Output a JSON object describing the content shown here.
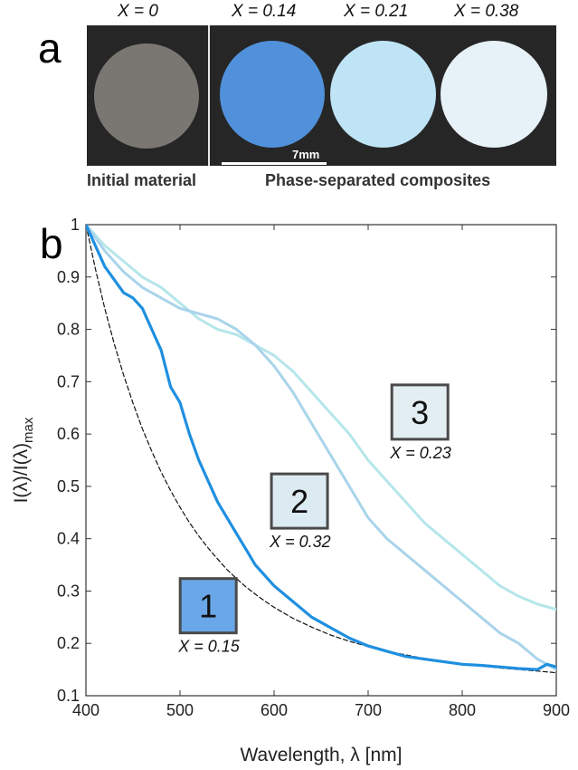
{
  "panel_a": {
    "letter": "a",
    "samples": [
      {
        "label": "X = 0",
        "color": "#7a7773"
      },
      {
        "label": "X = 0.14",
        "color": "#5191db"
      },
      {
        "label": "X = 0.21",
        "color": "#bfe4f6"
      },
      {
        "label": "X = 0.38",
        "color": "#e7f1f8"
      }
    ],
    "scale_label": "7mm",
    "caption_left": "Initial material",
    "caption_right": "Phase-separated composites"
  },
  "panel_b": {
    "letter": "b"
  },
  "chart_data": {
    "type": "line",
    "xlabel": "Wavelength, λ [nm]",
    "ylabel_main": "I(λ)/I(λ)",
    "ylabel_sub": "max",
    "xlim": [
      400,
      900
    ],
    "ylim": [
      0.1,
      1
    ],
    "xticks": [
      "400",
      "500",
      "600",
      "700",
      "800",
      "900"
    ],
    "yticks": [
      "0.1",
      "0.2",
      "0.3",
      "0.4",
      "0.5",
      "0.6",
      "0.7",
      "0.8",
      "0.9",
      "1"
    ],
    "grid": false,
    "series": [
      {
        "id": "1",
        "color": "#1f8fe0",
        "style": "solid",
        "x": [
          400,
          420,
          440,
          450,
          460,
          470,
          480,
          490,
          500,
          510,
          520,
          530,
          540,
          550,
          560,
          570,
          580,
          590,
          600,
          620,
          640,
          660,
          680,
          700,
          720,
          740,
          760,
          780,
          800,
          820,
          840,
          860,
          880,
          890,
          900
        ],
        "y": [
          1.0,
          0.92,
          0.87,
          0.86,
          0.84,
          0.8,
          0.76,
          0.69,
          0.66,
          0.6,
          0.55,
          0.51,
          0.47,
          0.44,
          0.41,
          0.38,
          0.35,
          0.33,
          0.31,
          0.28,
          0.25,
          0.23,
          0.21,
          0.195,
          0.185,
          0.175,
          0.17,
          0.165,
          0.16,
          0.158,
          0.155,
          0.152,
          0.15,
          0.16,
          0.155
        ]
      },
      {
        "id": "2",
        "color": "#a9d4ea",
        "style": "solid",
        "x": [
          400,
          420,
          440,
          460,
          480,
          500,
          520,
          540,
          560,
          580,
          600,
          620,
          640,
          660,
          680,
          700,
          720,
          740,
          760,
          780,
          800,
          820,
          840,
          860,
          880,
          900
        ],
        "y": [
          1.0,
          0.95,
          0.91,
          0.88,
          0.86,
          0.84,
          0.83,
          0.82,
          0.8,
          0.77,
          0.73,
          0.68,
          0.62,
          0.56,
          0.5,
          0.44,
          0.4,
          0.37,
          0.34,
          0.31,
          0.28,
          0.25,
          0.22,
          0.2,
          0.17,
          0.15
        ]
      },
      {
        "id": "3",
        "color": "#b5e6ea",
        "style": "solid",
        "x": [
          400,
          420,
          440,
          460,
          480,
          500,
          520,
          540,
          560,
          580,
          600,
          620,
          640,
          660,
          680,
          700,
          720,
          740,
          760,
          780,
          800,
          820,
          840,
          860,
          880,
          900
        ],
        "y": [
          1.0,
          0.96,
          0.93,
          0.9,
          0.88,
          0.85,
          0.82,
          0.8,
          0.79,
          0.77,
          0.75,
          0.72,
          0.68,
          0.64,
          0.6,
          0.55,
          0.51,
          0.47,
          0.43,
          0.4,
          0.37,
          0.34,
          0.31,
          0.29,
          0.275,
          0.265
        ]
      },
      {
        "id": "fit",
        "color": "#111111",
        "style": "dashed",
        "x": [
          400,
          410,
          420,
          430,
          440,
          450,
          460,
          470,
          480,
          490,
          500,
          510,
          520,
          530,
          540,
          550,
          560,
          570,
          580,
          590,
          600,
          620,
          640,
          660,
          680,
          700,
          720,
          740,
          760,
          780,
          800,
          820,
          840,
          860,
          880,
          900
        ],
        "y": [
          1.0,
          0.916,
          0.84,
          0.773,
          0.713,
          0.659,
          0.61,
          0.567,
          0.527,
          0.492,
          0.46,
          0.431,
          0.405,
          0.382,
          0.361,
          0.341,
          0.324,
          0.308,
          0.294,
          0.281,
          0.269,
          0.248,
          0.231,
          0.216,
          0.204,
          0.194,
          0.185,
          0.178,
          0.171,
          0.166,
          0.161,
          0.157,
          0.153,
          0.15,
          0.147,
          0.144
        ]
      }
    ],
    "annotations": [
      {
        "box": "1",
        "fill": "#6aa7e8",
        "x_label": "X = 0.15",
        "at": [
          530,
          0.22
        ]
      },
      {
        "box": "2",
        "fill": "#dceaf2",
        "x_label": "X = 0.32",
        "at": [
          627,
          0.42
        ]
      },
      {
        "box": "3",
        "fill": "#e3eef3",
        "x_label": "X = 0.23",
        "at": [
          755,
          0.59
        ]
      }
    ]
  }
}
